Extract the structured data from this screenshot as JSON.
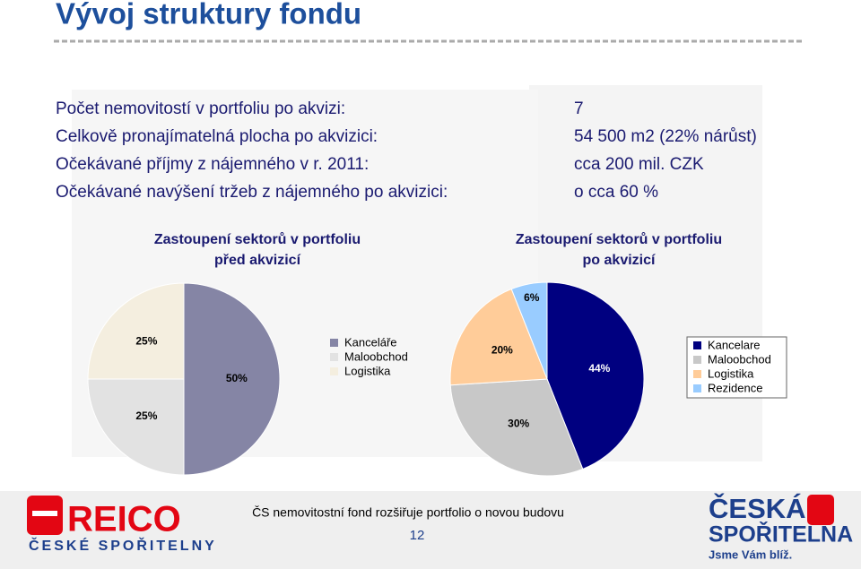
{
  "title": "Vývoj struktury fondu",
  "facts": [
    {
      "label": "Počet nemovitostí v portfoliu po akvizi:",
      "value": "7"
    },
    {
      "label": "Celkově pronajímatelná plocha po akvizici:",
      "value": "54 500 m2 (22% nárůst)"
    },
    {
      "label": "Očekávané příjmy z nájemného v r. 2011:",
      "value": "cca 200 mil. CZK"
    },
    {
      "label": "Očekávané navýšení tržeb z nájemného po akvizici:",
      "value": "o cca 60 %"
    }
  ],
  "chart_data": [
    {
      "type": "pie",
      "title": "Zastoupení sektorů v portfoliu\npřed akvizicí",
      "categories": [
        "Kanceláře",
        "Maloobchod",
        "Logistika"
      ],
      "values": [
        50,
        25,
        25
      ],
      "value_labels": [
        "50%",
        "25%",
        "25%"
      ],
      "colors": [
        "#8585a5",
        "#e2e2e2",
        "#f4eedf"
      ],
      "legend": "right"
    },
    {
      "type": "pie",
      "title": "Zastoupení sektorů v portfoliu\npo akvizicí",
      "categories": [
        "Kancelare",
        "Maloobchod",
        "Logistika",
        "Rezidence"
      ],
      "values": [
        44,
        30,
        20,
        6
      ],
      "value_labels": [
        "44%",
        "30%",
        "20%",
        "6%"
      ],
      "colors": [
        "#000080",
        "#c8c8c8",
        "#ffcc99",
        "#99ccff"
      ],
      "legend": "right"
    }
  ],
  "footer": {
    "logo_left": "REICO",
    "logo_left_sub": "ČESKÉ SPOŘITELNY",
    "caption": "ČS nemovitostní fond rozšiřuje portfolio o novou budovu",
    "page": "12",
    "logo_right_1": "ČESKÁ",
    "logo_right_2": "SPOŘITELNA",
    "slogan": "Jsme Vám blíž."
  }
}
